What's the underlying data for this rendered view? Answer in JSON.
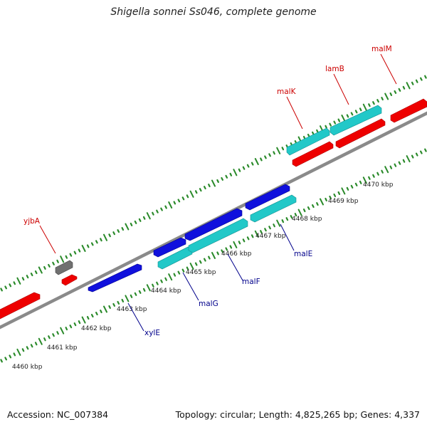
{
  "title": "Shigella sonnei Ss046, complete genome",
  "footer": {
    "accession": "Accession: NC_007384",
    "summary": "Topology: circular; Length: 4,825,265 bp; Genes: 4,337"
  },
  "colors": {
    "backbone": "#8a8a8a",
    "tick": "#2a8a2a",
    "forward_label": "#cc0000",
    "reverse_label": "#00008b",
    "red_feature": "#ee0000",
    "cyan_feature": "#22c8c8",
    "blue_feature": "#1010dd",
    "gray_feature": "#707070"
  },
  "axis": {
    "unit": "kbp",
    "labels": [
      "4460 kbp",
      "4461 kbp",
      "4462 kbp",
      "4463 kbp",
      "4464 kbp",
      "4465 kbp",
      "4466 kbp",
      "4467 kbp",
      "4468 kbp",
      "4469 kbp",
      "4470 kbp"
    ],
    "values": [
      4460,
      4461,
      4462,
      4463,
      4464,
      4465,
      4466,
      4467,
      4468,
      4469,
      4470
    ]
  },
  "gene_labels": {
    "forward": [
      "yjbA",
      "malK",
      "lamB",
      "malM"
    ],
    "reverse": [
      "xylE",
      "malG",
      "malF",
      "malE"
    ]
  }
}
